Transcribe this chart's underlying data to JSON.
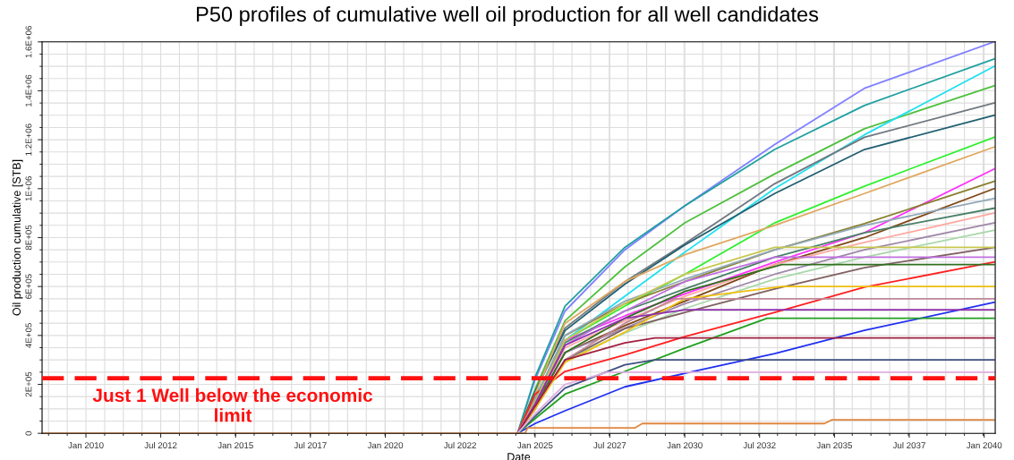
{
  "chart_data": {
    "type": "line",
    "title": "P50 profiles of cumulative well oil production for all well candidates",
    "xlabel": "Date",
    "ylabel": "Oil production cumulative [STB]",
    "x": [
      "2024-06",
      "2025-01",
      "2026-01",
      "2028-01",
      "2030-01",
      "2033-01",
      "2036-01",
      "2040-05"
    ],
    "xlim": [
      "2008-07-15",
      "2040-05-15"
    ],
    "xticks": [
      {
        "value": "2010-01-01",
        "label": "Jan 2010"
      },
      {
        "value": "2012-07-01",
        "label": "Jul 2012"
      },
      {
        "value": "2015-01-01",
        "label": "Jan 2015"
      },
      {
        "value": "2017-07-01",
        "label": "Jul 2017"
      },
      {
        "value": "2020-01-01",
        "label": "Jan 2020"
      },
      {
        "value": "2022-07-01",
        "label": "Jul 2022"
      },
      {
        "value": "2025-01-01",
        "label": "Jan 2025"
      },
      {
        "value": "2027-07-01",
        "label": "Jul 2027"
      },
      {
        "value": "2030-01-01",
        "label": "Jan 2030"
      },
      {
        "value": "2032-07-01",
        "label": "Jul 2032"
      },
      {
        "value": "2035-01-01",
        "label": "Jan 2035"
      },
      {
        "value": "2037-07-01",
        "label": "Jul 2037"
      },
      {
        "value": "2040-01-01",
        "label": "Jan 2040"
      }
    ],
    "ylim": [
      0,
      1600000
    ],
    "yticks": [
      0,
      {
        "value": 200000,
        "label": "2E+05"
      },
      {
        "value": 400000,
        "label": "4E+05"
      },
      {
        "value": 600000,
        "label": "6E+05"
      },
      {
        "value": 800000,
        "label": "8E+05"
      },
      {
        "value": 1000000,
        "label": "1E+06"
      },
      {
        "value": 1200000,
        "label": "1.2E+06"
      },
      {
        "value": 1400000,
        "label": "1.4E+06"
      },
      {
        "value": 1600000,
        "label": "1.6E+06"
      }
    ],
    "grid": true,
    "ref_lines": [
      {
        "axis": "y",
        "value": 225000,
        "label": "Just 1 Well below the economic\nlimit",
        "color": "#ff1010",
        "line_style": "dashed"
      }
    ],
    "series": [
      {
        "color": "#8080ff",
        "values": [
          0,
          220000,
          500000,
          750000,
          930000,
          1180000,
          1410000,
          1600000
        ]
      },
      {
        "color": "#20a0a0",
        "values": [
          0,
          230000,
          520000,
          760000,
          930000,
          1160000,
          1340000,
          1530000
        ]
      },
      {
        "color": "#50c040",
        "values": [
          0,
          180000,
          460000,
          680000,
          860000,
          1060000,
          1245000,
          1420000
        ]
      },
      {
        "color": "#20e0f0",
        "values": [
          0,
          150000,
          380000,
          560000,
          740000,
          1000000,
          1220000,
          1500000
        ]
      },
      {
        "color": "#707880",
        "values": [
          0,
          170000,
          430000,
          620000,
          775000,
          1020000,
          1210000,
          1350000
        ]
      },
      {
        "color": "#205f70",
        "values": [
          0,
          170000,
          420000,
          610000,
          770000,
          980000,
          1160000,
          1300000
        ]
      },
      {
        "color": "#30f030",
        "values": [
          0,
          140000,
          380000,
          520000,
          650000,
          860000,
          1010000,
          1210000
        ]
      },
      {
        "color": "#e0a860",
        "values": [
          0,
          160000,
          450000,
          620000,
          730000,
          850000,
          980000,
          1170000
        ]
      },
      {
        "color": "#ff30ff",
        "values": [
          0,
          130000,
          380000,
          480000,
          570000,
          700000,
          820000,
          1080000
        ]
      },
      {
        "color": "#8a8030",
        "values": [
          0,
          140000,
          400000,
          530000,
          620000,
          750000,
          857000,
          1030000
        ]
      },
      {
        "color": "#804818",
        "values": [
          0,
          110000,
          330000,
          440000,
          540000,
          690000,
          800000,
          1000000
        ]
      },
      {
        "color": "#90a8b8",
        "values": [
          0,
          140000,
          400000,
          540000,
          630000,
          750000,
          850000,
          960000
        ]
      },
      {
        "color": "#4a8068",
        "values": [
          0,
          130000,
          370000,
          500000,
          590000,
          720000,
          820000,
          920000
        ]
      },
      {
        "color": "#ffa8a0",
        "values": [
          0,
          115000,
          350000,
          460000,
          560000,
          690000,
          780000,
          900000
        ]
      },
      {
        "color": "#a088a8",
        "values": [
          0,
          110000,
          330000,
          430000,
          530000,
          650000,
          750000,
          860000
        ]
      },
      {
        "color": "#a8d8a8",
        "values": [
          0,
          100000,
          300000,
          410000,
          510000,
          630000,
          720000,
          830000
        ]
      },
      {
        "color": "#806060",
        "values": [
          0,
          100000,
          300000,
          428000,
          494000,
          590000,
          677000,
          760000
        ]
      },
      {
        "color": "#ff2020",
        "values": [
          0,
          160000,
          253000,
          320000,
          395000,
          494000,
          597000,
          700000
        ]
      },
      {
        "color": "#2030f0",
        "values": [
          0,
          40000,
          92000,
          190000,
          245000,
          326000,
          421000,
          535000
        ]
      },
      {
        "color": "#c8c850",
        "x": [
          "2024-06",
          "2025-01",
          "2026-01",
          "2028-01",
          "2030-01",
          "2033-01",
          "2040-05"
        ],
        "values": [
          0,
          130000,
          380000,
          530000,
          650000,
          760000,
          760000
        ]
      },
      {
        "color": "#c070e0",
        "x": [
          "2024-06",
          "2025-01",
          "2026-01",
          "2028-01",
          "2030-01",
          "2033-01",
          "2040-05"
        ],
        "values": [
          0,
          120000,
          360000,
          500000,
          620000,
          720000,
          720000
        ]
      },
      {
        "color": "#307020",
        "x": [
          "2024-06",
          "2025-01",
          "2026-01",
          "2028-01",
          "2030-01",
          "2033-04",
          "2040-05"
        ],
        "values": [
          0,
          110000,
          330000,
          470000,
          580000,
          690000,
          690000
        ]
      },
      {
        "color": "#f0c010",
        "x": [
          "2024-06",
          "2025-01",
          "2026-01",
          "2028-01",
          "2030-01",
          "2033-04",
          "2040-05"
        ],
        "values": [
          0,
          100000,
          290000,
          414000,
          550000,
          600000,
          600000
        ]
      },
      {
        "color": "#c08898",
        "x": [
          "2024-06",
          "2025-01",
          "2026-01",
          "2028-01",
          "2029-09",
          "2040-05"
        ],
        "values": [
          0,
          110000,
          300000,
          450000,
          550000,
          550000
        ]
      },
      {
        "color": "#9030b0",
        "x": [
          "2024-06",
          "2025-01",
          "2026-01",
          "2028-01",
          "2030-01",
          "2040-05"
        ],
        "values": [
          0,
          120000,
          360000,
          470000,
          505000,
          505000
        ]
      },
      {
        "color": "#20a020",
        "x": [
          "2024-06",
          "2025-01",
          "2026-01",
          "2028-01",
          "2030-01",
          "2032-10",
          "2040-05"
        ],
        "values": [
          0,
          60000,
          160000,
          253000,
          348000,
          470000,
          470000
        ]
      },
      {
        "color": "#a02040",
        "x": [
          "2024-06",
          "2025-01",
          "2026-01",
          "2028-01",
          "2029-01",
          "2040-05"
        ],
        "values": [
          0,
          110000,
          300000,
          370000,
          390000,
          390000
        ]
      },
      {
        "color": "#405080",
        "x": [
          "2024-06",
          "2025-01",
          "2026-01",
          "2028-01",
          "2029-01",
          "2040-05"
        ],
        "values": [
          0,
          70000,
          185000,
          280000,
          300000,
          300000
        ]
      },
      {
        "color": "#e0b0e0",
        "x": [
          "2024-06",
          "2025-01",
          "2026-01",
          "2027-06",
          "2040-05"
        ],
        "values": [
          0,
          80000,
          200000,
          250000,
          250000
        ]
      },
      {
        "color": "#e08840",
        "x": [
          "2008-08",
          "2024-09",
          "2024-10",
          "2028-05",
          "2028-08",
          "2034-09",
          "2034-12",
          "2040-05"
        ],
        "values": [
          0,
          0,
          22000,
          22000,
          40000,
          40000,
          55000,
          55000
        ]
      }
    ]
  }
}
